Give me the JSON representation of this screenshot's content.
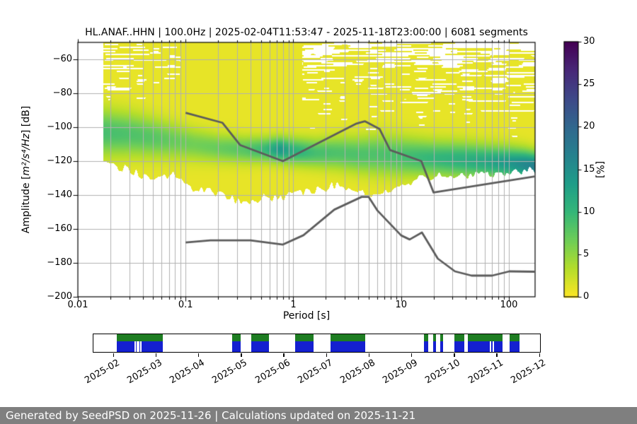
{
  "figure": {
    "footer": "Generated by SeedPSD on 2025-11-26 | Calculations updated on 2025-11-21"
  },
  "chart_data": {
    "type": "heatmap",
    "title": "HL.ANAF..HHN | 100.0Hz | 2025-02-04T11:53:47 - 2025-11-18T23:00:00 | 6081 segments",
    "xlabel": "Period [s]",
    "ylabel": "Amplitude [m²/s⁴/Hz] [dB]",
    "ylabel_parts": [
      "Amplitude [",
      "m²/s⁴/Hz",
      "] [dB]"
    ],
    "x_scale": "log",
    "xlim": [
      0.01,
      175
    ],
    "ylim": [
      -200,
      -50
    ],
    "x_ticks": [
      0.01,
      0.1,
      1,
      10,
      100
    ],
    "x_tick_labels": [
      "0.01",
      "0.1",
      "1",
      "10",
      "100"
    ],
    "y_ticks": [
      -60,
      -80,
      -100,
      -120,
      -140,
      -160,
      -180,
      -200
    ],
    "grid": true,
    "grid_color": "#b0b0b0",
    "colorbar": {
      "label": "[%]",
      "lim": [
        0,
        30
      ],
      "ticks": [
        0,
        5,
        10,
        15,
        20,
        25,
        30
      ],
      "colormap": "viridis_r",
      "viridis_stops": [
        "#440154",
        "#482878",
        "#3e4989",
        "#31688e",
        "#26828e",
        "#1f9e89",
        "#35b779",
        "#6ece58",
        "#b5de2b",
        "#fde725"
      ]
    },
    "noise_models": {
      "color": "#5c5c5c",
      "nhnm": [
        [
          0.1,
          -91.5
        ],
        [
          0.22,
          -97.4
        ],
        [
          0.32,
          -110.5
        ],
        [
          0.8,
          -120.0
        ],
        [
          3.8,
          -98.0
        ],
        [
          4.6,
          -96.5
        ],
        [
          6.3,
          -101.0
        ],
        [
          7.9,
          -113.5
        ],
        [
          15.4,
          -120.0
        ],
        [
          20.0,
          -138.5
        ],
        [
          175.0,
          -129.0
        ]
      ],
      "nlnm": [
        [
          0.1,
          -168.0
        ],
        [
          0.17,
          -166.7
        ],
        [
          0.4,
          -166.7
        ],
        [
          0.8,
          -169.2
        ],
        [
          1.24,
          -163.7
        ],
        [
          2.4,
          -148.6
        ],
        [
          4.3,
          -141.1
        ],
        [
          5.0,
          -141.1
        ],
        [
          6.0,
          -149.0
        ],
        [
          10.0,
          -163.8
        ],
        [
          12.0,
          -166.2
        ],
        [
          15.6,
          -162.1
        ],
        [
          21.9,
          -177.5
        ],
        [
          31.6,
          -185.0
        ],
        [
          45.0,
          -187.5
        ],
        [
          70.0,
          -187.5
        ],
        [
          101.0,
          -185.0
        ],
        [
          175.0,
          -185.2
        ]
      ]
    },
    "psd_envelope_columns": [
      "period",
      "top_db",
      "bottom_db",
      "green_center_db",
      "green_halfwidth_db",
      "green_peak_pct"
    ],
    "psd_envelope": [
      [
        0.017,
        -55,
        -121,
        -103,
        13,
        8
      ],
      [
        0.03,
        -63,
        -125,
        -104,
        12,
        7.5
      ],
      [
        0.05,
        -59,
        -131,
        -106,
        11,
        7
      ],
      [
        0.08,
        -66,
        -127,
        -108,
        10,
        6
      ],
      [
        0.12,
        -57,
        -136,
        -110,
        9,
        5.5
      ],
      [
        0.2,
        -51,
        -139,
        -112,
        8,
        6
      ],
      [
        0.35,
        -50,
        -144,
        -113,
        7.5,
        7
      ],
      [
        0.55,
        -53,
        -141,
        -113,
        7,
        9
      ],
      [
        0.75,
        -57,
        -141,
        -113,
        7,
        13
      ],
      [
        1.0,
        -60,
        -140,
        -114,
        7.5,
        10
      ],
      [
        1.6,
        -55,
        -137,
        -115,
        8,
        8
      ],
      [
        2.5,
        -51,
        -134,
        -115,
        9,
        7.5
      ],
      [
        4.0,
        -50,
        -138,
        -116,
        10,
        7.5
      ],
      [
        6.0,
        -52,
        -141,
        -116,
        11,
        7.5
      ],
      [
        10,
        -54,
        -133,
        -117,
        11,
        8
      ],
      [
        18,
        -57,
        -129,
        -118,
        10,
        9
      ],
      [
        35,
        -59,
        -128,
        -119,
        10,
        10
      ],
      [
        60,
        -57,
        -128,
        -120,
        9.5,
        11
      ],
      [
        100,
        -53,
        -127,
        -121,
        9,
        13
      ],
      [
        140,
        -50,
        -126,
        -122,
        8.5,
        15
      ],
      [
        175,
        -50,
        -125,
        -123,
        8,
        16
      ]
    ]
  },
  "availability": {
    "months": [
      "2025-02",
      "2025-03",
      "2025-04",
      "2025-05",
      "2025-06",
      "2025-07",
      "2025-08",
      "2025-09",
      "2025-10",
      "2025-11",
      "2025-12"
    ],
    "colors": {
      "top_band": "#1e7d22",
      "bottom_band": "#1420d0"
    },
    "segments": [
      {
        "start": 0.0521,
        "end": 0.1548,
        "gaps": [
          0.0924,
          0.0964,
          0.1003,
          0.1043
        ]
      },
      {
        "start": 0.3112,
        "end": 0.3302,
        "gaps": []
      },
      {
        "start": 0.3539,
        "end": 0.3934,
        "gaps": []
      },
      {
        "start": 0.4518,
        "end": 0.4929,
        "gaps": []
      },
      {
        "start": 0.5308,
        "end": 0.6098,
        "gaps": []
      },
      {
        "start": 0.7409,
        "end": 0.7504,
        "gaps": []
      },
      {
        "start": 0.7615,
        "end": 0.7678,
        "gaps": []
      },
      {
        "start": 0.7773,
        "end": 0.7836,
        "gaps": []
      },
      {
        "start": 0.8089,
        "end": 0.831,
        "gaps": []
      },
      {
        "start": 0.8389,
        "end": 0.9163,
        "gaps": [
          0.8878,
          0.8941
        ]
      },
      {
        "start": 0.9321,
        "end": 0.9542,
        "gaps": []
      }
    ]
  }
}
